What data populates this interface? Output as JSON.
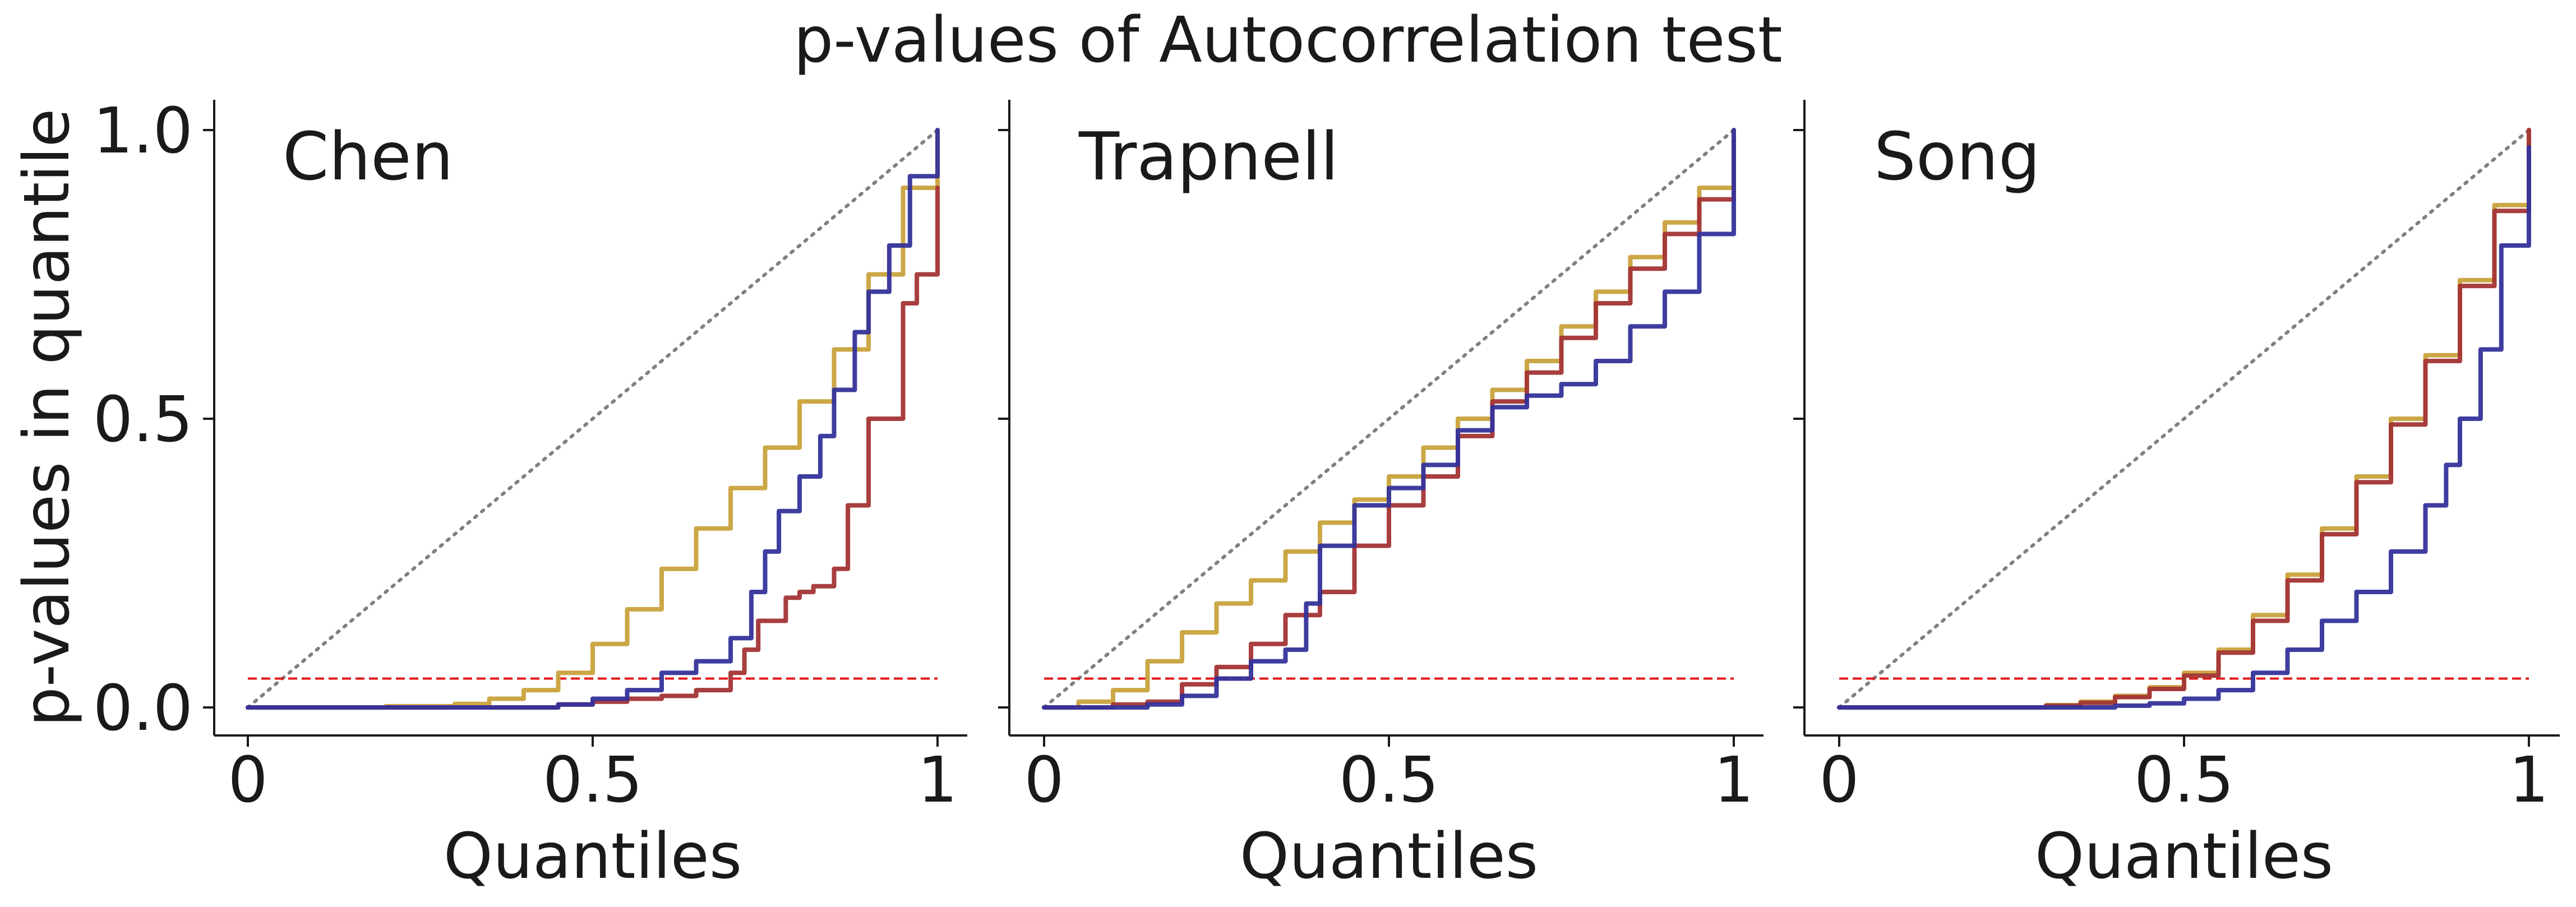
{
  "chart_data": {
    "type": "line",
    "title": "p-values of Autocorrelation test",
    "ylabel": "p-values in quantile",
    "xlabel": "Quantiles",
    "xlim": [
      0,
      1
    ],
    "ylim": [
      0,
      1
    ],
    "x_ticks": [
      {
        "value": 0,
        "label": "0"
      },
      {
        "value": 0.5,
        "label": "0.5"
      },
      {
        "value": 1,
        "label": "1"
      }
    ],
    "y_ticks": [
      {
        "value": 0,
        "label": "0.0"
      },
      {
        "value": 0.5,
        "label": "0.5"
      },
      {
        "value": 1,
        "label": "1.0"
      }
    ],
    "reference_line": {
      "type": "diagonal",
      "style": "dotted",
      "color": "#808080"
    },
    "threshold_line": {
      "y": 0.05,
      "style": "dashed",
      "color": "#e31a1c"
    },
    "series_colors": [
      "#c9a23c",
      "#a33434",
      "#34339a"
    ],
    "panels": [
      {
        "label": "Chen",
        "series": [
          {
            "x": [
              0,
              0.1,
              0.2,
              0.3,
              0.35,
              0.4,
              0.45,
              0.5,
              0.55,
              0.6,
              0.65,
              0.7,
              0.75,
              0.8,
              0.85,
              0.9,
              0.95,
              1.0
            ],
            "y": [
              0,
              0,
              0.002,
              0.006,
              0.015,
              0.03,
              0.06,
              0.11,
              0.17,
              0.24,
              0.31,
              0.38,
              0.45,
              0.53,
              0.62,
              0.75,
              0.9,
              1.0
            ]
          },
          {
            "x": [
              0,
              0.3,
              0.45,
              0.5,
              0.55,
              0.6,
              0.65,
              0.7,
              0.72,
              0.74,
              0.78,
              0.8,
              0.82,
              0.85,
              0.87,
              0.9,
              0.92,
              0.95,
              0.97,
              1.0
            ],
            "y": [
              0,
              0,
              0.005,
              0.01,
              0.015,
              0.02,
              0.03,
              0.06,
              0.1,
              0.15,
              0.19,
              0.2,
              0.21,
              0.24,
              0.35,
              0.5,
              0.5,
              0.7,
              0.75,
              0.9
            ]
          },
          {
            "x": [
              0,
              0.3,
              0.45,
              0.5,
              0.55,
              0.6,
              0.65,
              0.7,
              0.73,
              0.75,
              0.77,
              0.8,
              0.83,
              0.85,
              0.88,
              0.9,
              0.93,
              0.96,
              1.0
            ],
            "y": [
              0,
              0,
              0.005,
              0.015,
              0.03,
              0.06,
              0.08,
              0.12,
              0.2,
              0.27,
              0.34,
              0.4,
              0.47,
              0.55,
              0.65,
              0.72,
              0.8,
              0.92,
              1.0
            ]
          }
        ]
      },
      {
        "label": "Trapnell",
        "series": [
          {
            "x": [
              0,
              0.05,
              0.1,
              0.15,
              0.2,
              0.25,
              0.3,
              0.35,
              0.4,
              0.45,
              0.5,
              0.55,
              0.6,
              0.65,
              0.7,
              0.75,
              0.8,
              0.85,
              0.9,
              0.95,
              1.0
            ],
            "y": [
              0,
              0.01,
              0.03,
              0.08,
              0.13,
              0.18,
              0.22,
              0.27,
              0.32,
              0.36,
              0.4,
              0.45,
              0.5,
              0.55,
              0.6,
              0.66,
              0.72,
              0.78,
              0.84,
              0.9,
              1.0
            ]
          },
          {
            "x": [
              0,
              0.1,
              0.15,
              0.2,
              0.25,
              0.3,
              0.35,
              0.4,
              0.45,
              0.5,
              0.55,
              0.6,
              0.65,
              0.7,
              0.75,
              0.8,
              0.85,
              0.9,
              0.95,
              1.0
            ],
            "y": [
              0,
              0.005,
              0.01,
              0.04,
              0.07,
              0.11,
              0.16,
              0.2,
              0.28,
              0.35,
              0.4,
              0.47,
              0.53,
              0.58,
              0.64,
              0.7,
              0.76,
              0.82,
              0.88,
              0.98
            ]
          },
          {
            "x": [
              0,
              0.15,
              0.2,
              0.25,
              0.3,
              0.35,
              0.38,
              0.4,
              0.45,
              0.5,
              0.55,
              0.6,
              0.65,
              0.7,
              0.75,
              0.8,
              0.85,
              0.9,
              0.95,
              1.0
            ],
            "y": [
              0,
              0.005,
              0.02,
              0.05,
              0.08,
              0.1,
              0.18,
              0.28,
              0.35,
              0.38,
              0.42,
              0.48,
              0.52,
              0.54,
              0.56,
              0.6,
              0.66,
              0.72,
              0.82,
              1.0
            ]
          }
        ]
      },
      {
        "label": "Song",
        "series": [
          {
            "x": [
              0,
              0.2,
              0.3,
              0.35,
              0.4,
              0.45,
              0.5,
              0.55,
              0.6,
              0.65,
              0.7,
              0.75,
              0.8,
              0.85,
              0.9,
              0.95,
              1.0
            ],
            "y": [
              0,
              0,
              0.004,
              0.01,
              0.02,
              0.035,
              0.06,
              0.1,
              0.16,
              0.23,
              0.31,
              0.4,
              0.5,
              0.61,
              0.74,
              0.87,
              1.0
            ]
          },
          {
            "x": [
              0,
              0.2,
              0.3,
              0.35,
              0.4,
              0.45,
              0.5,
              0.55,
              0.6,
              0.65,
              0.7,
              0.75,
              0.8,
              0.85,
              0.9,
              0.95,
              1.0
            ],
            "y": [
              0,
              0,
              0.003,
              0.008,
              0.018,
              0.032,
              0.055,
              0.095,
              0.15,
              0.22,
              0.3,
              0.39,
              0.49,
              0.6,
              0.73,
              0.86,
              1.0
            ]
          },
          {
            "x": [
              0,
              0.3,
              0.4,
              0.45,
              0.5,
              0.55,
              0.6,
              0.65,
              0.7,
              0.75,
              0.8,
              0.85,
              0.88,
              0.9,
              0.93,
              0.96,
              1.0
            ],
            "y": [
              0,
              0,
              0.003,
              0.007,
              0.015,
              0.03,
              0.06,
              0.1,
              0.15,
              0.2,
              0.27,
              0.35,
              0.42,
              0.5,
              0.62,
              0.8,
              0.97
            ]
          }
        ]
      }
    ]
  }
}
